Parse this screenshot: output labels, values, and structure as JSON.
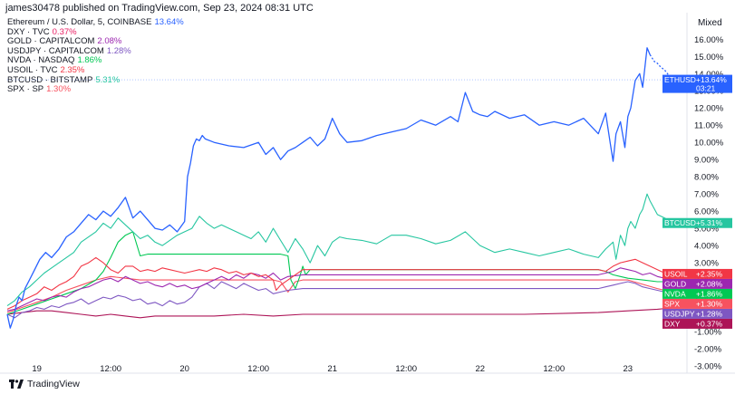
{
  "header": {
    "text": "james30478 published on TradingView.com, Sep 23, 2024 08:31 UTC"
  },
  "scale_mode": "Mixed",
  "footer": {
    "brand": "TradingView"
  },
  "legend": [
    {
      "name": "Ethereum / U.S. Dollar, 5, COINBASE",
      "value": "13.64%",
      "color": "#2962ff"
    },
    {
      "name": "DXY · TVC",
      "value": "0.37%",
      "color": "#e91e63"
    },
    {
      "name": "GOLD · CAPITALCOM",
      "value": "2.08%",
      "color": "#9c27b0"
    },
    {
      "name": "USDJPY · CAPITALCOM",
      "value": "1.28%",
      "color": "#7e57c2"
    },
    {
      "name": "NVDA · NASDAQ",
      "value": "1.86%",
      "color": "#00c853"
    },
    {
      "name": "USOIL · TVC",
      "value": "2.35%",
      "color": "#f23645"
    },
    {
      "name": "BTCUSD · BITSTAMP",
      "value": "5.31%",
      "color": "#26c6a0"
    },
    {
      "name": "SPX · SP",
      "value": "1.30%",
      "color": "#f7525f"
    }
  ],
  "chart_data": {
    "type": "line",
    "title": "Ethereum / U.S. Dollar, 5, COINBASE",
    "y_unit": "%",
    "ylim": [
      -3,
      16.7
    ],
    "xlim": [
      0,
      4.6
    ],
    "y_ticks": [
      16,
      15,
      14,
      13,
      12,
      11,
      10,
      9,
      8,
      7,
      6,
      5,
      4,
      3,
      2,
      1,
      0,
      -1,
      -2,
      -3
    ],
    "x_ticks": [
      {
        "x": 0.2,
        "label": "19"
      },
      {
        "x": 0.7,
        "label": "12:00"
      },
      {
        "x": 1.2,
        "label": "20"
      },
      {
        "x": 1.7,
        "label": "12:00"
      },
      {
        "x": 2.2,
        "label": "21"
      },
      {
        "x": 2.7,
        "label": "12:00"
      },
      {
        "x": 3.2,
        "label": "22"
      },
      {
        "x": 3.7,
        "label": "12:00"
      },
      {
        "x": 4.2,
        "label": "23"
      }
    ],
    "grid": false,
    "series": [
      {
        "name": "ETHUSD",
        "color": "#2962ff",
        "last_label": "+13.64%",
        "sub_label": "03:21",
        "x": [
          0,
          0.02,
          0.04,
          0.06,
          0.08,
          0.1,
          0.12,
          0.15,
          0.18,
          0.22,
          0.26,
          0.3,
          0.35,
          0.4,
          0.45,
          0.5,
          0.55,
          0.6,
          0.65,
          0.7,
          0.75,
          0.8,
          0.85,
          0.9,
          0.95,
          1.0,
          1.05,
          1.1,
          1.15,
          1.2,
          1.22,
          1.24,
          1.26,
          1.28,
          1.3,
          1.32,
          1.34,
          1.4,
          1.5,
          1.6,
          1.7,
          1.75,
          1.8,
          1.85,
          1.9,
          1.95,
          2.0,
          2.05,
          2.1,
          2.15,
          2.2,
          2.25,
          2.3,
          2.4,
          2.5,
          2.6,
          2.7,
          2.8,
          2.9,
          3.0,
          3.05,
          3.1,
          3.15,
          3.2,
          3.25,
          3.3,
          3.4,
          3.5,
          3.6,
          3.7,
          3.8,
          3.9,
          4.0,
          4.05,
          4.08,
          4.1,
          4.12,
          4.15,
          4.18,
          4.2,
          4.22,
          4.25,
          4.28,
          4.3,
          4.33,
          4.35
        ],
        "y": [
          0,
          -0.8,
          -0.3,
          0.5,
          1.0,
          0.8,
          1.5,
          2.0,
          2.5,
          3.2,
          3.6,
          3.3,
          3.8,
          4.5,
          4.8,
          5.3,
          5.8,
          5.5,
          6.0,
          5.7,
          6.2,
          6.8,
          5.6,
          6.0,
          5.5,
          5.0,
          4.9,
          5.2,
          4.8,
          5.4,
          8.0,
          8.8,
          9.8,
          10.2,
          10.1,
          10.4,
          10.2,
          10.0,
          9.8,
          9.7,
          10.0,
          9.3,
          9.7,
          9.0,
          9.5,
          9.7,
          10.0,
          10.3,
          9.8,
          10.2,
          11.4,
          10.5,
          10.0,
          10.1,
          10.4,
          10.6,
          10.8,
          11.3,
          11.0,
          11.5,
          11.2,
          12.9,
          11.8,
          11.6,
          11.5,
          11.8,
          11.4,
          11.6,
          11.0,
          11.2,
          11.0,
          11.4,
          10.5,
          11.7,
          10.0,
          8.9,
          10.5,
          11.2,
          9.7,
          11.5,
          12.0,
          13.6,
          14.0,
          13.2,
          15.5,
          15.1
        ],
        "x2": [
          4.35,
          4.38,
          4.4,
          4.42,
          4.45,
          4.5
        ],
        "y2": [
          15.1,
          14.7,
          14.6,
          14.4,
          14.2,
          13.64
        ]
      },
      {
        "name": "BTCUSD",
        "color": "#26c6a0",
        "last_label": "+5.31%",
        "x": [
          0,
          0.05,
          0.1,
          0.15,
          0.2,
          0.25,
          0.3,
          0.35,
          0.4,
          0.45,
          0.5,
          0.55,
          0.6,
          0.65,
          0.7,
          0.75,
          0.8,
          0.85,
          0.9,
          0.95,
          1.0,
          1.05,
          1.1,
          1.15,
          1.2,
          1.25,
          1.3,
          1.35,
          1.4,
          1.45,
          1.5,
          1.55,
          1.6,
          1.65,
          1.7,
          1.75,
          1.8,
          1.85,
          1.9,
          1.95,
          2.0,
          2.05,
          2.1,
          2.15,
          2.2,
          2.25,
          2.3,
          2.4,
          2.5,
          2.6,
          2.7,
          2.8,
          2.9,
          3.0,
          3.1,
          3.2,
          3.3,
          3.4,
          3.5,
          3.6,
          3.7,
          3.8,
          3.9,
          4.0,
          4.05,
          4.1,
          4.12,
          4.15,
          4.18,
          4.2,
          4.22,
          4.25,
          4.28,
          4.3,
          4.33,
          4.35,
          4.4,
          4.45,
          4.5
        ],
        "y": [
          0.5,
          0.8,
          1.3,
          1.6,
          2.0,
          2.4,
          2.7,
          3.0,
          3.3,
          3.6,
          4.2,
          4.5,
          4.8,
          5.3,
          5.0,
          5.6,
          5.2,
          4.8,
          4.4,
          4.6,
          4.2,
          4.0,
          4.3,
          4.6,
          4.8,
          5.0,
          5.7,
          5.3,
          5.0,
          5.2,
          5.0,
          4.8,
          4.6,
          4.4,
          4.8,
          4.2,
          5.0,
          4.3,
          3.6,
          4.4,
          3.8,
          3.0,
          4.0,
          3.4,
          4.2,
          4.5,
          4.4,
          4.3,
          4.1,
          4.6,
          4.6,
          4.4,
          4.1,
          4.3,
          4.8,
          4.0,
          3.6,
          3.8,
          3.6,
          3.4,
          3.6,
          3.8,
          3.5,
          3.3,
          3.8,
          4.2,
          3.2,
          4.6,
          4.0,
          5.0,
          5.4,
          5.0,
          5.8,
          6.1,
          7.0,
          6.6,
          5.8,
          5.6,
          5.31
        ]
      },
      {
        "name": "USOIL",
        "color": "#f23645",
        "last_label": "+2.35%",
        "x": [
          0,
          0.05,
          0.1,
          0.15,
          0.2,
          0.25,
          0.3,
          0.35,
          0.4,
          0.45,
          0.5,
          0.55,
          0.6,
          0.65,
          0.7,
          0.75,
          0.8,
          0.85,
          0.9,
          0.95,
          1.0,
          1.05,
          1.1,
          1.15,
          1.2,
          1.25,
          1.3,
          1.35,
          1.4,
          1.45,
          1.5,
          1.55,
          1.6,
          1.65,
          1.7,
          1.75,
          1.8,
          1.82,
          1.85,
          1.9,
          2.0,
          2.5,
          3.0,
          3.5,
          4.0,
          4.05,
          4.1,
          4.15,
          4.2,
          4.25,
          4.3,
          4.35,
          4.4,
          4.45,
          4.5
        ],
        "y": [
          0.3,
          0.5,
          0.8,
          1.0,
          1.2,
          1.6,
          1.4,
          1.7,
          1.9,
          2.2,
          2.8,
          3.0,
          3.3,
          3.0,
          2.6,
          2.4,
          2.8,
          2.8,
          2.5,
          2.6,
          2.5,
          2.7,
          2.6,
          2.5,
          2.4,
          2.5,
          2.6,
          2.5,
          2.7,
          2.6,
          2.4,
          2.5,
          2.3,
          2.4,
          2.2,
          2.3,
          2.0,
          1.4,
          1.7,
          2.0,
          2.6,
          2.6,
          2.6,
          2.6,
          2.6,
          2.5,
          2.8,
          3.0,
          3.1,
          3.2,
          3.0,
          2.8,
          2.6,
          2.4,
          2.35
        ]
      },
      {
        "name": "GOLD",
        "color": "#9c27b0",
        "last_label": "+2.08%",
        "x": [
          0,
          0.05,
          0.1,
          0.15,
          0.2,
          0.25,
          0.3,
          0.35,
          0.4,
          0.45,
          0.5,
          0.55,
          0.6,
          0.65,
          0.7,
          0.75,
          0.8,
          0.85,
          0.9,
          0.95,
          1.0,
          1.05,
          1.1,
          1.15,
          1.2,
          1.25,
          1.3,
          1.35,
          1.4,
          1.45,
          1.5,
          1.55,
          1.6,
          1.65,
          1.7,
          1.75,
          1.8,
          1.85,
          1.9,
          2.0,
          2.5,
          3.0,
          3.5,
          4.0,
          4.05,
          4.1,
          4.15,
          4.2,
          4.25,
          4.3,
          4.35,
          4.4,
          4.45,
          4.5
        ],
        "y": [
          0.2,
          0.3,
          0.5,
          0.7,
          0.9,
          0.8,
          1.0,
          1.1,
          1.0,
          1.3,
          1.5,
          1.6,
          1.8,
          2.0,
          2.1,
          1.9,
          2.2,
          2.0,
          1.8,
          1.9,
          1.7,
          1.6,
          1.8,
          1.6,
          1.7,
          1.5,
          1.6,
          1.8,
          2.0,
          2.2,
          2.0,
          2.3,
          2.1,
          2.4,
          2.3,
          2.1,
          2.4,
          2.0,
          2.2,
          2.3,
          2.3,
          2.3,
          2.3,
          2.3,
          2.4,
          2.5,
          2.7,
          2.6,
          2.5,
          2.3,
          2.4,
          2.2,
          2.1,
          2.08
        ]
      },
      {
        "name": "NVDA",
        "color": "#00c853",
        "last_label": "+1.86%",
        "x": [
          0,
          0.1,
          0.2,
          0.3,
          0.4,
          0.5,
          0.6,
          0.65,
          0.7,
          0.75,
          0.8,
          0.85,
          0.9,
          0.95,
          1.0,
          1.2,
          1.4,
          1.6,
          1.8,
          1.85,
          1.9,
          1.92,
          1.95,
          1.98,
          2.0,
          2.02,
          2.05,
          2.5,
          3.0,
          3.5,
          4.0,
          4.05,
          4.1,
          4.15,
          4.2,
          4.3,
          4.4,
          4.45,
          4.5
        ],
        "y": [
          0.0,
          0.3,
          0.6,
          0.9,
          1.2,
          1.5,
          2.0,
          2.5,
          3.3,
          4.2,
          4.6,
          4.8,
          3.4,
          3.5,
          3.5,
          3.5,
          3.5,
          3.5,
          3.5,
          3.5,
          3.4,
          2.0,
          1.5,
          2.2,
          2.8,
          2.3,
          2.6,
          2.6,
          2.6,
          2.6,
          2.6,
          2.5,
          2.3,
          2.2,
          2.1,
          2.0,
          1.9,
          1.9,
          1.86
        ]
      },
      {
        "name": "USDJPY",
        "color": "#7e57c2",
        "last_label": "+1.28%",
        "x": [
          0,
          0.05,
          0.1,
          0.15,
          0.2,
          0.25,
          0.3,
          0.35,
          0.4,
          0.45,
          0.5,
          0.55,
          0.6,
          0.65,
          0.7,
          0.75,
          0.8,
          0.85,
          0.9,
          0.95,
          1.0,
          1.05,
          1.1,
          1.15,
          1.2,
          1.25,
          1.3,
          1.35,
          1.4,
          1.45,
          1.5,
          1.55,
          1.6,
          1.65,
          1.7,
          1.75,
          1.8,
          1.85,
          1.9,
          2.0,
          2.5,
          3.0,
          3.5,
          4.0,
          4.05,
          4.1,
          4.15,
          4.2,
          4.25,
          4.3,
          4.35,
          4.4,
          4.45,
          4.5
        ],
        "y": [
          0.0,
          -0.2,
          0.1,
          0.2,
          0.4,
          0.3,
          0.5,
          0.4,
          0.6,
          0.7,
          0.9,
          0.6,
          0.8,
          1.0,
          0.9,
          1.1,
          1.0,
          0.8,
          0.9,
          0.6,
          0.7,
          0.5,
          0.8,
          0.6,
          0.7,
          1.0,
          1.6,
          1.8,
          1.5,
          1.9,
          1.7,
          1.5,
          1.8,
          1.6,
          1.4,
          1.5,
          1.2,
          1.3,
          1.4,
          1.5,
          1.5,
          1.5,
          1.5,
          1.5,
          1.6,
          1.7,
          1.8,
          1.9,
          1.8,
          1.6,
          1.5,
          1.4,
          1.3,
          1.28
        ]
      },
      {
        "name": "SPX",
        "color": "#f7525f",
        "last_label": "+1.30%",
        "x": [
          0,
          0.1,
          0.2,
          0.3,
          0.4,
          0.5,
          0.6,
          0.7,
          0.8,
          0.9,
          1.0,
          1.2,
          1.4,
          1.6,
          1.8,
          1.85,
          1.9,
          1.95,
          2.0,
          2.5,
          3.0,
          3.5,
          4.0,
          4.2,
          4.4,
          4.5
        ],
        "y": [
          0.1,
          0.4,
          0.7,
          1.0,
          1.4,
          1.7,
          2.0,
          2.2,
          2.1,
          2.0,
          2.0,
          2.0,
          2.0,
          2.0,
          2.0,
          1.9,
          1.3,
          1.9,
          2.0,
          2.0,
          2.0,
          2.0,
          2.0,
          2.0,
          1.5,
          1.3
        ]
      },
      {
        "name": "DXY",
        "color": "#ad1457",
        "last_label": "+0.37%",
        "x": [
          0,
          0.1,
          0.2,
          0.3,
          0.4,
          0.5,
          0.6,
          0.7,
          0.8,
          0.9,
          1.0,
          1.2,
          1.4,
          1.6,
          1.8,
          2.0,
          2.5,
          3.0,
          3.5,
          4.0,
          4.2,
          4.4,
          4.5
        ],
        "y": [
          0.0,
          0.1,
          0.2,
          0.2,
          0.1,
          0.0,
          -0.1,
          0.0,
          -0.1,
          -0.2,
          -0.1,
          -0.1,
          -0.1,
          0.0,
          -0.1,
          0.0,
          0.0,
          0.0,
          0.0,
          0.1,
          0.2,
          0.3,
          0.37
        ]
      }
    ]
  }
}
